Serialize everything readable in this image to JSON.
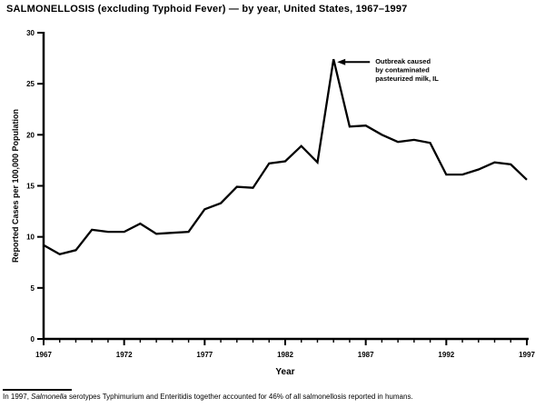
{
  "title": "SALMONELLOSIS (excluding Typhoid Fever) — by year, United States, 1967–1997",
  "chart_data": {
    "type": "line",
    "title": "SALMONELLOSIS (excluding Typhoid Fever) — by year, United States, 1967–1997",
    "xlabel": "Year",
    "ylabel": "Reported Cases per 100,000 Population",
    "x": [
      1967,
      1968,
      1969,
      1970,
      1971,
      1972,
      1973,
      1974,
      1975,
      1976,
      1977,
      1978,
      1979,
      1980,
      1981,
      1982,
      1983,
      1984,
      1985,
      1986,
      1987,
      1988,
      1989,
      1990,
      1991,
      1992,
      1993,
      1994,
      1995,
      1996,
      1997
    ],
    "values": [
      9.2,
      8.3,
      8.7,
      10.7,
      10.5,
      10.5,
      11.3,
      10.3,
      10.4,
      10.5,
      12.7,
      13.3,
      14.9,
      14.8,
      17.2,
      17.4,
      18.9,
      17.3,
      27.4,
      20.8,
      20.9,
      20.0,
      19.3,
      19.5,
      19.2,
      16.1,
      16.1,
      16.6,
      17.3,
      17.1,
      15.6
    ],
    "ylim": [
      0,
      30
    ],
    "yticks": [
      0,
      5,
      10,
      15,
      20,
      25,
      30
    ],
    "xticks": [
      1967,
      1972,
      1977,
      1982,
      1987,
      1992,
      1997
    ],
    "grid": "off",
    "legend": "none",
    "line_color": "#000000",
    "background_color": "#ffffff",
    "annotation": {
      "text_lines": [
        "Outbreak caused",
        "by contaminated",
        "pasteurized milk, IL"
      ],
      "year": 1985,
      "value": 27.4
    }
  },
  "footnote": {
    "prefix": "In 1997, ",
    "italic": "Salmonella",
    "rest": " serotypes Typhimurium and Enteritidis together accounted for 46% of all salmonellosis reported in humans."
  }
}
